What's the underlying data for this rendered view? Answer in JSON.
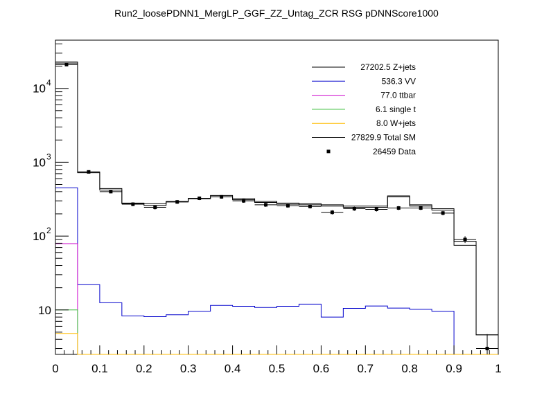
{
  "chart_data": {
    "type": "histogram",
    "title": "Run2_loosePDNN1_MergLP_GGF_ZZ_Untag_ZCR RSG  pDNNScore1000",
    "xlabel": "",
    "ylabel": "",
    "xlim": [
      0,
      1
    ],
    "ylim": [
      2.5,
      45000
    ],
    "y_scale": "log",
    "grid": false,
    "legend_position": "top-right",
    "x_ticks": [
      "0",
      "0.1",
      "0.2",
      "0.3",
      "0.4",
      "0.5",
      "0.6",
      "0.7",
      "0.8",
      "0.9",
      "1"
    ],
    "y_ticks": [
      {
        "value": 10,
        "label": "10"
      },
      {
        "value": 100,
        "label": "10",
        "exp": "2"
      },
      {
        "value": 1000,
        "label": "10",
        "exp": "3"
      },
      {
        "value": 10000,
        "label": "10",
        "exp": "4"
      }
    ],
    "bin_edges": [
      0,
      0.05,
      0.1,
      0.15,
      0.2,
      0.25,
      0.3,
      0.35,
      0.4,
      0.45,
      0.5,
      0.55,
      0.6,
      0.65,
      0.7,
      0.75,
      0.8,
      0.85,
      0.9,
      0.95,
      1.0
    ],
    "series": [
      {
        "name": "Z+jets",
        "legend": "27202.5 Z+jets",
        "color": "#000000",
        "values": [
          22000,
          720,
          420,
          275,
          260,
          290,
          320,
          340,
          310,
          285,
          270,
          265,
          255,
          245,
          245,
          340,
          255,
          225,
          85,
          4.6
        ]
      },
      {
        "name": "VV",
        "legend": "536.3 VV",
        "color": "#0000cc",
        "values": [
          450,
          22,
          12.5,
          8.3,
          8.1,
          8.6,
          9.6,
          11.5,
          11.2,
          10.8,
          11.2,
          12,
          8,
          10.5,
          11.3,
          10.6,
          10.2,
          9.6,
          0,
          0
        ]
      },
      {
        "name": "ttbar",
        "legend": "77.0 ttbar",
        "color": "#cc00cc",
        "values": [
          79,
          0,
          0,
          0,
          0,
          0,
          0,
          0,
          0,
          0,
          0,
          0,
          0,
          0,
          0,
          0,
          0,
          0,
          0,
          0
        ]
      },
      {
        "name": "single t",
        "legend": "6.1 single t",
        "color": "#33bb33",
        "values": [
          10,
          0,
          0,
          0,
          0,
          0,
          0,
          0,
          0,
          0,
          0,
          0,
          0,
          0,
          0,
          0,
          0,
          0,
          0,
          0
        ]
      },
      {
        "name": "W+jets",
        "legend": "8.0 W+jets",
        "color": "#ffbb00",
        "values": [
          4.8,
          0,
          0,
          0,
          0,
          0,
          0,
          0,
          0,
          0,
          0,
          0,
          0,
          0,
          0,
          0,
          0,
          0,
          0,
          0
        ]
      },
      {
        "name": "Total SM",
        "legend": "27829.9 Total SM",
        "color": "#000000",
        "values": [
          22800,
          740,
          440,
          280,
          275,
          295,
          325,
          355,
          320,
          295,
          280,
          275,
          265,
          255,
          255,
          350,
          265,
          235,
          75,
          4.6
        ]
      }
    ],
    "data_points": {
      "name": "Data",
      "legend": "26459 Data",
      "color": "#000000",
      "x": [
        0.025,
        0.075,
        0.125,
        0.175,
        0.225,
        0.275,
        0.325,
        0.375,
        0.425,
        0.475,
        0.525,
        0.575,
        0.625,
        0.675,
        0.725,
        0.775,
        0.825,
        0.875,
        0.925,
        0.975
      ],
      "y": [
        21000,
        740,
        400,
        270,
        245,
        290,
        325,
        340,
        300,
        265,
        258,
        252,
        210,
        235,
        230,
        240,
        240,
        205,
        90,
        3.0
      ],
      "err": [
        145,
        27,
        20,
        16,
        16,
        17,
        18,
        18,
        17,
        16,
        16,
        16,
        14,
        15,
        15,
        15,
        15,
        14,
        9.5,
        1.7
      ]
    }
  }
}
